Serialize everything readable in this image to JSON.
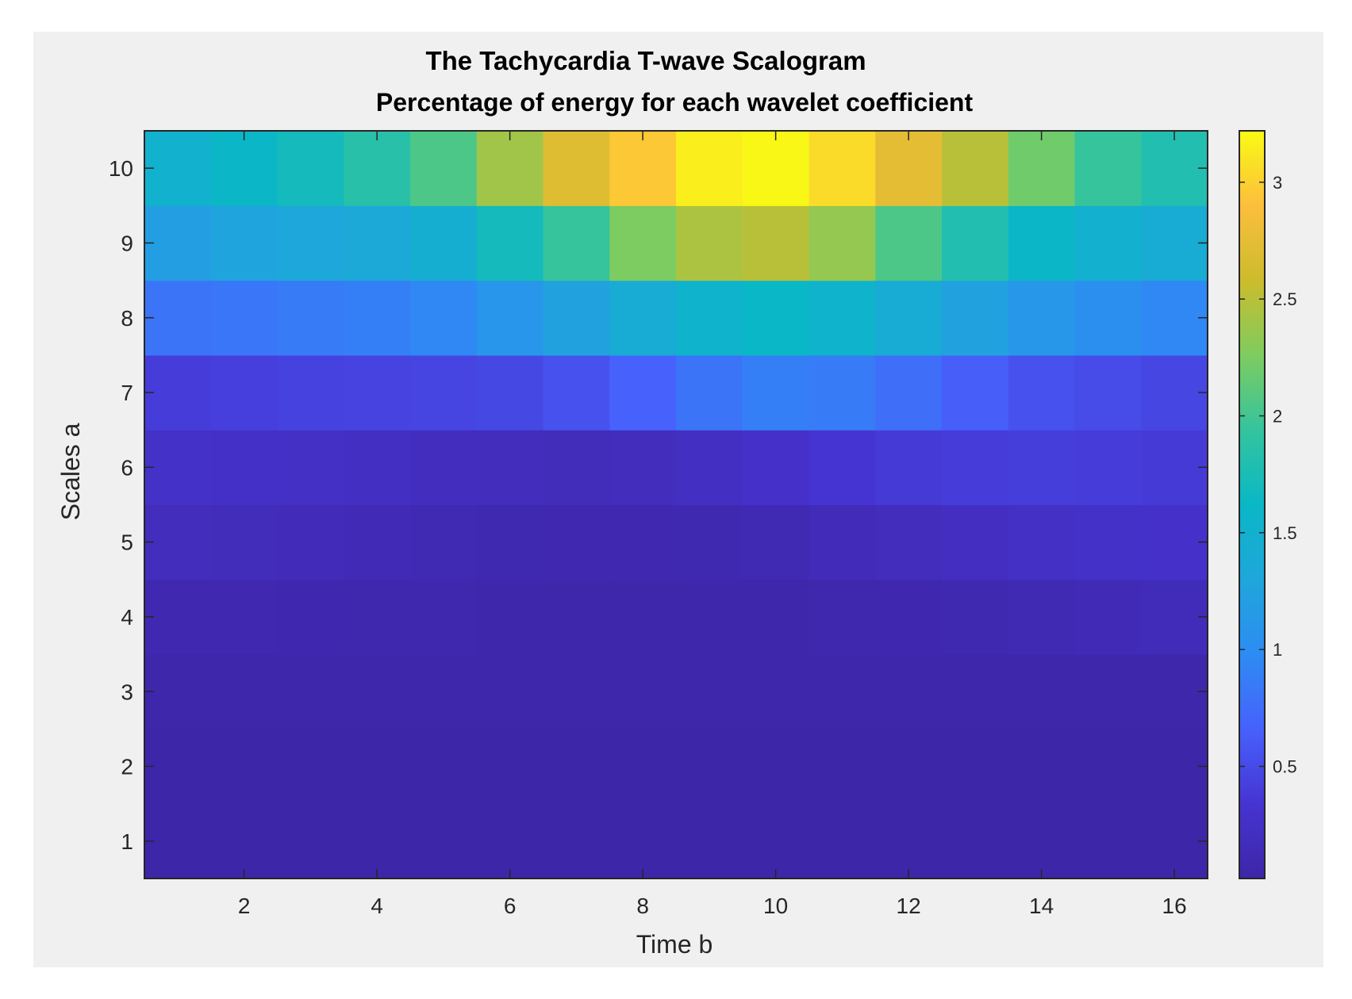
{
  "chart_data": {
    "type": "heatmap",
    "title": "The Tachycardia T-wave Scalogram",
    "subtitle": "Percentage of energy for each wavelet coefficient",
    "xlabel": "Time b",
    "ylabel": "Scales a",
    "x": [
      1,
      2,
      3,
      4,
      5,
      6,
      7,
      8,
      9,
      10,
      11,
      12,
      13,
      14,
      15,
      16
    ],
    "y": [
      1,
      2,
      3,
      4,
      5,
      6,
      7,
      8,
      9,
      10
    ],
    "xlim": [
      0.5,
      16.5
    ],
    "ylim": [
      0.5,
      10.5
    ],
    "xticks": [
      2,
      4,
      6,
      8,
      10,
      12,
      14,
      16
    ],
    "yticks": [
      1,
      2,
      3,
      4,
      5,
      6,
      7,
      8,
      9,
      10
    ],
    "values": [
      [
        0.02,
        0.02,
        0.02,
        0.02,
        0.02,
        0.02,
        0.02,
        0.02,
        0.02,
        0.02,
        0.02,
        0.02,
        0.02,
        0.02,
        0.02,
        0.02
      ],
      [
        0.03,
        0.03,
        0.03,
        0.03,
        0.03,
        0.03,
        0.03,
        0.03,
        0.03,
        0.03,
        0.03,
        0.03,
        0.03,
        0.03,
        0.03,
        0.03
      ],
      [
        0.04,
        0.04,
        0.04,
        0.04,
        0.04,
        0.04,
        0.04,
        0.04,
        0.04,
        0.04,
        0.04,
        0.04,
        0.04,
        0.05,
        0.05,
        0.05
      ],
      [
        0.08,
        0.08,
        0.07,
        0.06,
        0.06,
        0.05,
        0.05,
        0.05,
        0.05,
        0.05,
        0.06,
        0.07,
        0.09,
        0.11,
        0.13,
        0.15
      ],
      [
        0.17,
        0.16,
        0.14,
        0.12,
        0.11,
        0.09,
        0.08,
        0.08,
        0.09,
        0.11,
        0.14,
        0.18,
        0.21,
        0.24,
        0.26,
        0.28
      ],
      [
        0.26,
        0.25,
        0.24,
        0.22,
        0.19,
        0.17,
        0.16,
        0.18,
        0.22,
        0.28,
        0.34,
        0.38,
        0.4,
        0.41,
        0.4,
        0.38
      ],
      [
        0.4,
        0.42,
        0.44,
        0.45,
        0.46,
        0.48,
        0.55,
        0.66,
        0.8,
        0.88,
        0.86,
        0.76,
        0.64,
        0.55,
        0.5,
        0.47
      ],
      [
        0.8,
        0.82,
        0.85,
        0.88,
        0.95,
        1.1,
        1.25,
        1.4,
        1.55,
        1.62,
        1.55,
        1.4,
        1.25,
        1.12,
        1.02,
        0.95
      ],
      [
        1.2,
        1.28,
        1.32,
        1.35,
        1.45,
        1.7,
        1.95,
        2.25,
        2.45,
        2.5,
        2.35,
        2.05,
        1.8,
        1.6,
        1.48,
        1.4
      ],
      [
        1.5,
        1.6,
        1.7,
        1.85,
        2.05,
        2.4,
        2.7,
        2.95,
        3.15,
        3.2,
        3.05,
        2.75,
        2.5,
        2.2,
        1.95,
        1.8
      ]
    ],
    "colormap": "parula",
    "clim": [
      0.02,
      3.22
    ],
    "colorbar": {
      "ticks": [
        0.5,
        1,
        1.5,
        2,
        2.5,
        3
      ],
      "labels": [
        "0.5",
        "1",
        "1.5",
        "2",
        "2.5",
        "3"
      ]
    },
    "grid": false
  }
}
